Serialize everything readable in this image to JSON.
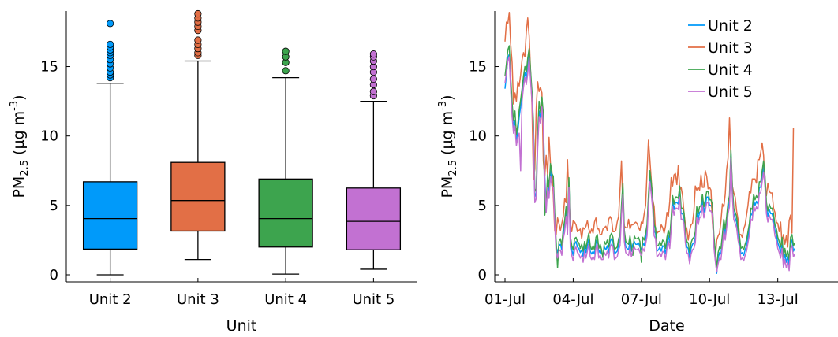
{
  "colors": {
    "unit2": "#009AFA",
    "unit3": "#E26F46",
    "unit4": "#3DA44E",
    "unit5": "#C271D2",
    "axis": "#000000"
  },
  "chart_data": [
    {
      "type": "box",
      "xlabel": "Unit",
      "ylabel_base": "PM",
      "ylabel_sub": "2.5",
      "ylabel_unit": " (µg m",
      "ylabel_sup": "-3",
      "ylabel_close": ")",
      "ylim": [
        0,
        19
      ],
      "yticks": [
        0,
        5,
        10,
        15
      ],
      "grid": false,
      "categories": [
        "Unit 2",
        "Unit 3",
        "Unit 4",
        "Unit 5"
      ],
      "boxes": [
        {
          "name": "Unit 2",
          "color_key": "unit2",
          "whisker_low": 0.0,
          "q1": 1.85,
          "median": 4.05,
          "q3": 6.7,
          "whisker_high": 13.8,
          "outliers": [
            14.2,
            14.4,
            14.6,
            14.9,
            15.2,
            15.5,
            15.8,
            16.0,
            16.2,
            16.4,
            16.6,
            18.1
          ]
        },
        {
          "name": "Unit 3",
          "color_key": "unit3",
          "whisker_low": 1.1,
          "q1": 3.15,
          "median": 5.35,
          "q3": 8.1,
          "whisker_high": 15.4,
          "outliers": [
            15.8,
            16.0,
            16.3,
            16.6,
            16.9,
            17.6,
            17.9,
            18.2,
            18.5,
            18.8
          ]
        },
        {
          "name": "Unit 4",
          "color_key": "unit4",
          "whisker_low": 0.05,
          "q1": 2.0,
          "median": 4.05,
          "q3": 6.9,
          "whisker_high": 14.2,
          "outliers": [
            14.7,
            15.3,
            15.7,
            16.1
          ]
        },
        {
          "name": "Unit 5",
          "color_key": "unit5",
          "whisker_low": 0.4,
          "q1": 1.8,
          "median": 3.85,
          "q3": 6.25,
          "whisker_high": 12.5,
          "outliers": [
            12.9,
            13.2,
            13.7,
            14.1,
            14.6,
            15.0,
            15.4,
            15.7,
            15.9
          ]
        }
      ]
    },
    {
      "type": "line",
      "xlabel": "Date",
      "ylabel_base": "PM",
      "ylabel_sub": "2.5",
      "ylabel_unit": " (µg m",
      "ylabel_sup": "-3",
      "ylabel_close": ")",
      "ylim": [
        0,
        19
      ],
      "yticks": [
        0,
        5,
        10,
        15
      ],
      "xlim": [
        0,
        14.65
      ],
      "xticks": [
        {
          "value": 0,
          "label": "01-Jul"
        },
        {
          "value": 3,
          "label": "04-Jul"
        },
        {
          "value": 6,
          "label": "07-Jul"
        },
        {
          "value": 9,
          "label": "10-Jul"
        },
        {
          "value": 12,
          "label": "13-Jul"
        }
      ],
      "x_step_days": 0.0625,
      "grid": false,
      "legend": "top-right",
      "series": [
        {
          "name": "Unit 2",
          "color_key": "unit2",
          "values": [
            13.4,
            14.4,
            15.6,
            15.9,
            13.5,
            11.8,
            10.6,
            11.1,
            9.7,
            10.3,
            11.4,
            12.1,
            12.9,
            13.9,
            14.6,
            14.1,
            14.9,
            16.0,
            14.4,
            12.9,
            10.6,
            5.6,
            5.9,
            9.5,
            11.8,
            11.3,
            12.5,
            11.0,
            7.1,
            4.9,
            6.7,
            5.9,
            7.5,
            6.8,
            6.7,
            4.1,
            2.0,
            1.6,
            2.1,
            2.2,
            1.8,
            3.0,
            3.5,
            4.6,
            3.3,
            6.7,
            2.4,
            1.8,
            1.4,
            2.2,
            2.4,
            2.0,
            1.9,
            1.6,
            1.8,
            1.3,
            2.1,
            1.6,
            2.1,
            2.6,
            1.7,
            1.5,
            1.7,
            1.5,
            2.3,
            2.6,
            1.6,
            1.8,
            1.5,
            1.5,
            2.0,
            1.8,
            2.1,
            1.6,
            2.4,
            2.6,
            2.4,
            1.5,
            1.6,
            1.7,
            2.2,
            2.5,
            4.6,
            6.2,
            2.8,
            2.0,
            1.9,
            1.8,
            2.4,
            1.7,
            2.2,
            2.4,
            2.2,
            2.2,
            2.3,
            2.0,
            1.8,
            2.3,
            2.1,
            2.6,
            3.2,
            5.3,
            7.1,
            6.2,
            5.1,
            3.2,
            3.0,
            1.7,
            1.8,
            2.0,
            1.7,
            2.1,
            2.0,
            1.5,
            2.3,
            2.8,
            2.3,
            3.7,
            5.3,
            4.7,
            5.2,
            5.2,
            5.1,
            6.0,
            4.4,
            4.4,
            4.1,
            2.7,
            2.0,
            1.9,
            1.2,
            1.9,
            2.2,
            2.3,
            2.7,
            4.5,
            4.0,
            4.5,
            4.6,
            5.4,
            4.5,
            5.0,
            5.6,
            5.6,
            5.0,
            5.0,
            4.7,
            2.4,
            1.4,
            0.1,
            1.2,
            1.6,
            1.5,
            2.5,
            3.6,
            2.9,
            3.8,
            4.8,
            5.3,
            8.8,
            6.1,
            4.4,
            4.1,
            3.8,
            2.9,
            2.4,
            1.5,
            1.6,
            1.4,
            1.8,
            2.1,
            2.7,
            3.3,
            4.4,
            4.3,
            5.4,
            5.0,
            5.3,
            5.1,
            6.3,
            6.3,
            7.1,
            7.8,
            6.7,
            4.8,
            4.2,
            4.7,
            4.4,
            4.4,
            4.0,
            3.2,
            2.9,
            2.3,
            2.0,
            1.6,
            2.3,
            0.9,
            1.5,
            0.9,
            1.3,
            0.7,
            2.3,
            2.5,
            1.7,
            1.9
          ]
        },
        {
          "name": "Unit 3",
          "color_key": "unit3",
          "values": [
            16.8,
            18.2,
            18.1,
            18.9,
            16.6,
            15.3,
            12.3,
            13.1,
            12.5,
            13.9,
            13.6,
            14.4,
            15.5,
            16.0,
            15.7,
            17.5,
            18.5,
            17.2,
            14.6,
            12.2,
            6.9,
            7.6,
            12.0,
            13.9,
            13.2,
            13.5,
            13.1,
            8.2,
            7.1,
            8.6,
            7.2,
            9.9,
            8.0,
            7.5,
            5.7,
            3.2,
            2.9,
            4.1,
            3.7,
            3.2,
            3.7,
            4.2,
            5.5,
            5.2,
            8.3,
            5.6,
            3.7,
            3.1,
            3.9,
            3.8,
            3.6,
            3.1,
            3.2,
            3.3,
            2.6,
            3.4,
            3.3,
            3.5,
            3.9,
            3.3,
            3.0,
            3.3,
            3.0,
            3.8,
            4.1,
            3.3,
            3.3,
            2.9,
            2.9,
            3.3,
            3.4,
            3.5,
            3.2,
            4.0,
            4.2,
            4.0,
            3.1,
            3.1,
            3.2,
            3.8,
            4.2,
            6.2,
            8.2,
            4.7,
            3.5,
            3.4,
            3.4,
            4.0,
            3.3,
            3.6,
            3.6,
            3.7,
            3.8,
            3.7,
            3.4,
            3.2,
            3.8,
            3.7,
            4.4,
            5.0,
            7.4,
            9.7,
            8.3,
            6.8,
            5.4,
            4.9,
            3.1,
            3.0,
            3.1,
            3.1,
            3.6,
            3.4,
            3.0,
            3.5,
            4.5,
            4.2,
            5.3,
            7.0,
            6.4,
            7.2,
            7.3,
            6.5,
            7.9,
            6.1,
            6.3,
            5.7,
            4.5,
            3.6,
            3.3,
            2.5,
            3.2,
            3.6,
            3.7,
            4.6,
            6.4,
            6.1,
            6.3,
            6.1,
            7.2,
            6.3,
            6.3,
            7.5,
            7.1,
            6.2,
            6.3,
            6.1,
            3.8,
            2.6,
            1.1,
            2.5,
            2.8,
            3.0,
            3.9,
            5.1,
            4.9,
            5.8,
            7.6,
            8.4,
            11.3,
            8.5,
            6.4,
            5.9,
            5.6,
            4.6,
            4.0,
            2.9,
            2.9,
            2.7,
            3.3,
            3.6,
            4.3,
            5.0,
            6.0,
            5.9,
            6.9,
            6.9,
            6.9,
            6.6,
            8.3,
            8.3,
            8.8,
            9.5,
            8.6,
            6.4,
            5.7,
            6.6,
            6.0,
            5.9,
            5.9,
            4.8,
            4.5,
            3.8,
            3.7,
            3.1,
            3.8,
            2.2,
            2.9,
            2.2,
            2.8,
            2.0,
            3.9,
            4.3,
            3.0,
            10.6
          ]
        },
        {
          "name": "Unit 4",
          "color_key": "unit4",
          "values": [
            14.3,
            15.2,
            16.2,
            16.5,
            14.2,
            12.4,
            11.1,
            11.8,
            10.1,
            10.8,
            11.9,
            12.6,
            13.4,
            14.3,
            15.0,
            14.6,
            15.6,
            16.3,
            14.7,
            13.2,
            11.0,
            6.0,
            6.2,
            10.1,
            12.5,
            11.7,
            12.8,
            11.6,
            4.3,
            5.2,
            7.2,
            6.3,
            8.0,
            7.3,
            7.1,
            4.5,
            2.4,
            0.5,
            2.4,
            2.6,
            2.1,
            3.3,
            3.9,
            4.9,
            3.7,
            7.0,
            2.8,
            2.1,
            1.8,
            2.6,
            2.7,
            2.4,
            2.3,
            1.9,
            2.2,
            1.7,
            2.4,
            1.9,
            2.5,
            3.0,
            2.1,
            1.8,
            2.1,
            1.8,
            2.7,
            2.9,
            1.9,
            2.2,
            1.8,
            1.2,
            2.4,
            2.2,
            2.5,
            2.0,
            2.8,
            3.0,
            2.7,
            1.8,
            1.9,
            2.0,
            2.6,
            2.9,
            5.0,
            6.6,
            3.2,
            2.4,
            2.3,
            2.2,
            2.8,
            2.1,
            1.4,
            2.8,
            2.6,
            2.6,
            2.7,
            2.4,
            0.9,
            2.7,
            2.5,
            3.0,
            3.6,
            5.7,
            7.5,
            6.6,
            5.5,
            3.6,
            3.4,
            2.1,
            2.1,
            2.4,
            2.1,
            2.5,
            2.4,
            1.9,
            2.7,
            3.2,
            2.7,
            4.1,
            5.7,
            5.1,
            5.6,
            5.6,
            5.5,
            6.4,
            4.8,
            4.8,
            4.5,
            3.1,
            2.4,
            2.3,
            1.6,
            2.3,
            2.6,
            2.7,
            3.1,
            4.9,
            4.4,
            4.9,
            5.0,
            5.8,
            4.9,
            5.4,
            6.0,
            6.0,
            5.4,
            5.4,
            5.1,
            2.8,
            1.8,
            0.5,
            1.6,
            2.0,
            1.9,
            2.9,
            4.0,
            3.3,
            4.2,
            5.2,
            5.7,
            9.0,
            6.5,
            4.8,
            4.5,
            4.2,
            3.3,
            2.8,
            1.9,
            2.0,
            1.8,
            2.2,
            2.5,
            3.1,
            3.7,
            4.8,
            4.7,
            5.8,
            5.4,
            5.7,
            5.5,
            6.7,
            6.7,
            7.5,
            8.2,
            7.1,
            5.2,
            4.6,
            5.1,
            4.8,
            4.8,
            4.4,
            3.6,
            3.3,
            2.7,
            2.4,
            2.0,
            2.7,
            1.3,
            1.9,
            1.3,
            1.7,
            1.1,
            2.7,
            2.9,
            2.1,
            2.3
          ]
        },
        {
          "name": "Unit 5",
          "color_key": "unit5",
          "values": [
            13.8,
            14.6,
            15.4,
            15.7,
            13.3,
            11.4,
            10.2,
            10.7,
            9.3,
            9.9,
            10.2,
            7.5,
            12.5,
            13.5,
            14.2,
            13.7,
            14.5,
            15.6,
            14.0,
            12.5,
            10.2,
            5.2,
            5.5,
            9.1,
            11.4,
            10.9,
            12.1,
            10.6,
            6.7,
            4.5,
            6.3,
            5.5,
            7.1,
            6.4,
            6.3,
            3.7,
            1.6,
            1.2,
            1.7,
            1.8,
            1.4,
            2.6,
            3.1,
            4.2,
            2.9,
            6.3,
            2.0,
            1.4,
            1.0,
            1.8,
            2.0,
            1.6,
            1.5,
            1.2,
            1.4,
            0.9,
            1.7,
            1.2,
            1.7,
            2.2,
            1.3,
            1.1,
            1.3,
            1.1,
            1.9,
            2.2,
            1.2,
            1.4,
            1.1,
            1.1,
            1.6,
            1.4,
            1.7,
            1.2,
            2.0,
            2.2,
            2.0,
            1.1,
            1.2,
            1.3,
            1.8,
            2.1,
            4.2,
            5.8,
            2.4,
            1.6,
            1.5,
            1.4,
            2.0,
            1.3,
            1.8,
            2.0,
            1.8,
            1.8,
            1.9,
            1.6,
            1.4,
            1.9,
            1.7,
            2.2,
            2.8,
            4.9,
            6.7,
            5.8,
            4.7,
            2.8,
            2.6,
            1.3,
            1.4,
            1.6,
            1.3,
            1.7,
            1.6,
            1.1,
            1.9,
            2.4,
            1.9,
            3.3,
            4.9,
            4.3,
            4.8,
            4.8,
            4.7,
            5.6,
            4.0,
            4.0,
            3.7,
            2.3,
            1.6,
            1.5,
            0.8,
            1.5,
            1.8,
            1.9,
            2.3,
            4.1,
            3.6,
            4.1,
            4.2,
            5.0,
            4.1,
            4.6,
            5.2,
            5.2,
            4.6,
            4.6,
            4.3,
            2.0,
            1.0,
            0.2,
            0.8,
            1.2,
            1.1,
            2.1,
            3.2,
            2.5,
            3.4,
            4.4,
            4.9,
            8.4,
            5.7,
            4.0,
            3.7,
            3.4,
            2.5,
            2.0,
            1.1,
            1.2,
            1.0,
            1.4,
            1.7,
            2.3,
            2.9,
            4.0,
            3.9,
            5.0,
            4.6,
            4.9,
            4.7,
            5.9,
            5.9,
            6.7,
            7.4,
            6.3,
            4.4,
            3.8,
            4.3,
            4.0,
            4.0,
            3.6,
            2.8,
            2.5,
            1.9,
            1.6,
            1.2,
            1.9,
            0.5,
            1.1,
            0.5,
            0.9,
            0.3,
            1.9,
            2.1,
            1.3,
            1.5
          ]
        }
      ]
    }
  ]
}
